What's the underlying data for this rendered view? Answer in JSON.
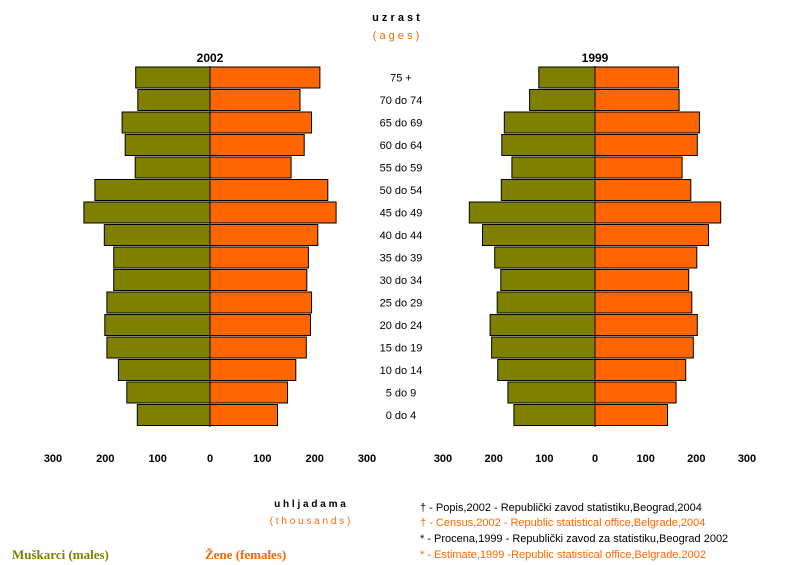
{
  "header": {
    "title": "u z r a s t",
    "subtitle": "( a g e s )"
  },
  "colors": {
    "male": "#808000",
    "female": "#FF6600",
    "text": "#000000",
    "bar_stroke": "#000000"
  },
  "chart_data": [
    {
      "type": "bar",
      "title": "2002",
      "orientation": "horizontal",
      "categories": [
        "75 +",
        "70 do 74",
        "65 do 69",
        "60 do 64",
        "55 do 59",
        "50 do 54",
        "45 do 49",
        "40 do 44",
        "35 do 39",
        "30 do 34",
        "25 do 29",
        "20 do 24",
        "15 do 19",
        "10 do 14",
        "5 do 9",
        "0 do 4"
      ],
      "series": [
        {
          "name": "Muškarci (males)",
          "values": [
            142,
            138,
            168,
            162,
            143,
            220,
            241,
            202,
            184,
            184,
            197,
            201,
            197,
            175,
            159,
            139
          ]
        },
        {
          "name": "Žene (females)",
          "values": [
            210,
            172,
            194,
            180,
            155,
            225,
            241,
            206,
            188,
            185,
            194,
            192,
            184,
            164,
            148,
            129
          ]
        }
      ],
      "x_ticks": [
        "300",
        "200",
        "100",
        "0",
        "100",
        "200",
        "300"
      ],
      "xlim": [
        -300,
        300
      ]
    },
    {
      "type": "bar",
      "title": "1999",
      "orientation": "horizontal",
      "categories": [
        "75 +",
        "70 do 74",
        "65 do 69",
        "60 do 64",
        "55 do 59",
        "50 do 54",
        "45 do 49",
        "40 do 44",
        "35 do 39",
        "30 do 34",
        "25 do 29",
        "20 do 24",
        "15 do 19",
        "10 do 14",
        "5 do 9",
        "0 do 4"
      ],
      "series": [
        {
          "name": "Muškarci (males)",
          "values": [
            111,
            129,
            179,
            184,
            164,
            185,
            248,
            222,
            198,
            186,
            193,
            207,
            204,
            192,
            172,
            160
          ]
        },
        {
          "name": "Žene (females)",
          "values": [
            165,
            166,
            206,
            202,
            172,
            189,
            248,
            224,
            201,
            185,
            191,
            202,
            194,
            179,
            160,
            143
          ]
        }
      ],
      "x_ticks": [
        "300",
        "200",
        "100",
        "0",
        "100",
        "200",
        "300"
      ],
      "xlim": [
        -300,
        300
      ]
    }
  ],
  "units": {
    "label": "u h l j a d a m a",
    "sub": "( t h o u s a n d s )"
  },
  "notes": [
    {
      "text": "† - Popis,2002 - Republički zavod statistiku,Beograd,2004",
      "color": "#000000"
    },
    {
      "text": "† - Census,2002 - Republic statistical office,Belgrade,2004",
      "color": "#FF6600"
    },
    {
      "text": "* - Procena,1999 - Republički zavod za statistiku,Beograd 2002",
      "color": "#000000"
    },
    {
      "text": "* - Estimate,1999 -Republic statistical office,Belgrade,2002",
      "color": "#FF6600"
    }
  ],
  "legend": {
    "males": "Muškarci (males)",
    "females": "Žene (females)"
  }
}
